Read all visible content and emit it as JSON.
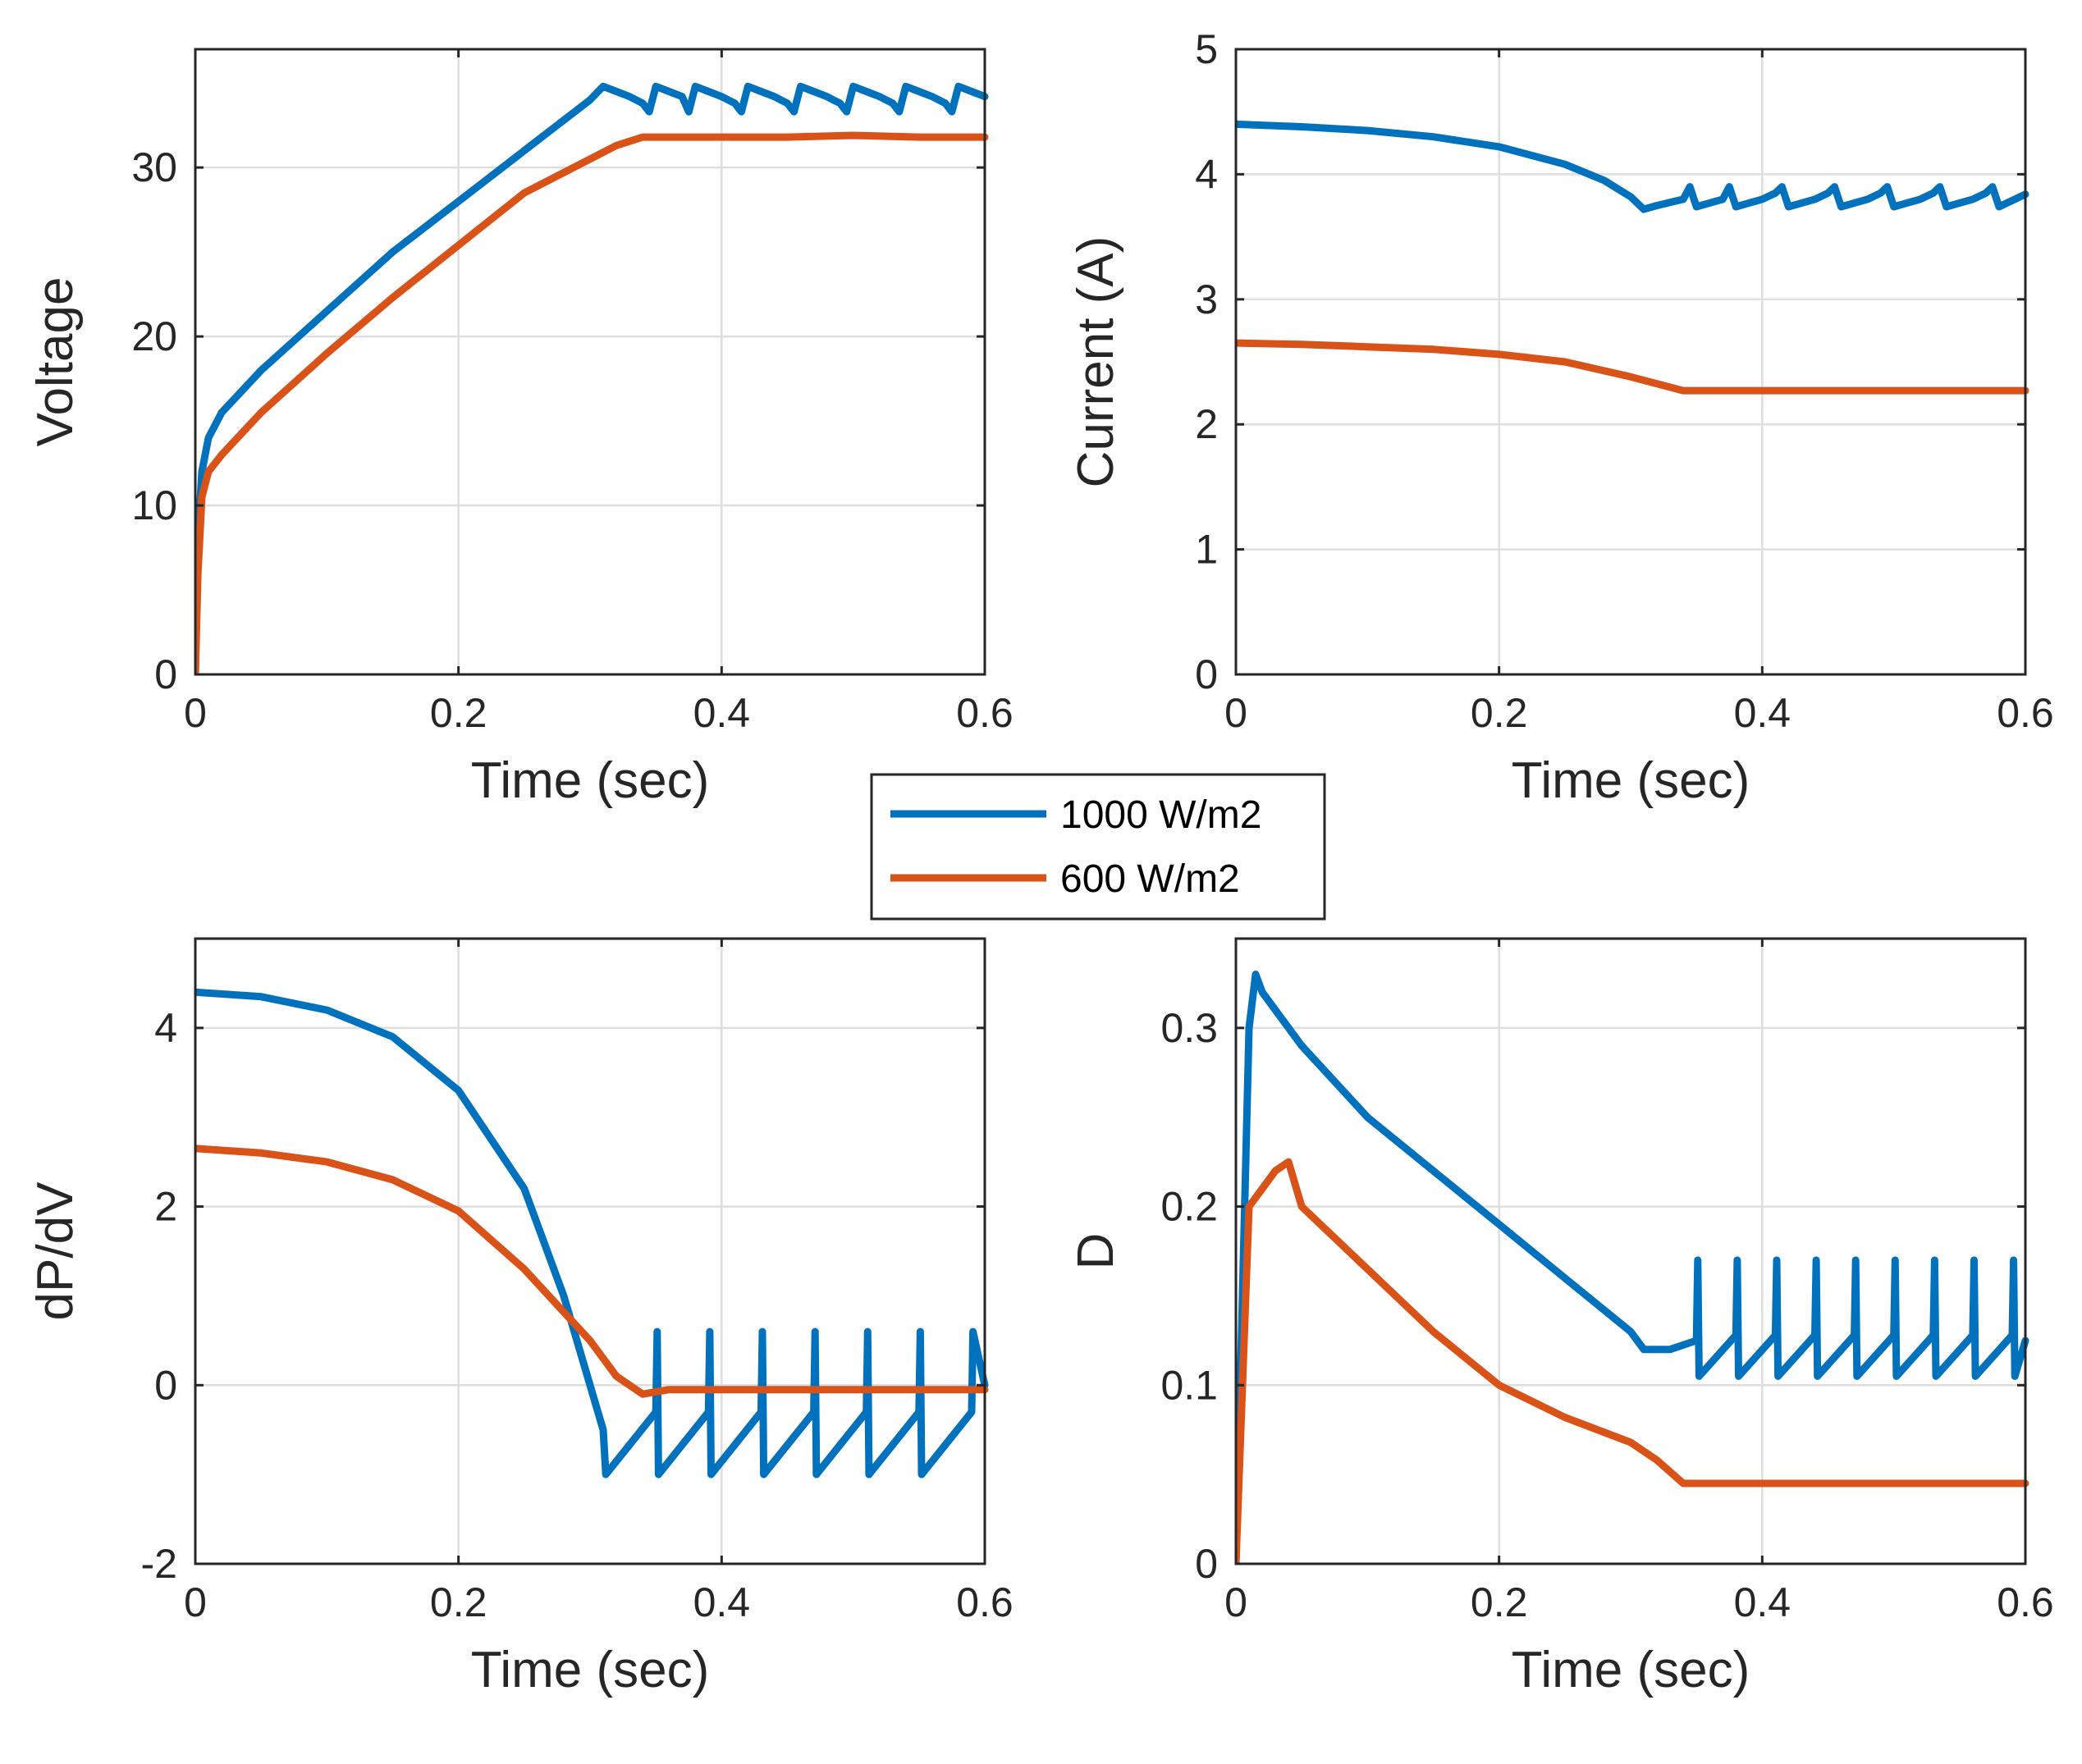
{
  "colors": {
    "s1": "#0072BD",
    "s2": "#D95319",
    "axis": "#262626",
    "grid": "#dedede"
  },
  "legend": {
    "entries": [
      {
        "name": "1000 W/m2",
        "color": "#0072BD"
      },
      {
        "name": "600 W/m2",
        "color": "#D95319"
      }
    ],
    "placement": "center"
  },
  "chart_data": [
    {
      "id": "voltage",
      "type": "line",
      "title": "",
      "xlabel": "Time (sec)",
      "ylabel": "Voltage",
      "xlim": [
        0,
        0.6
      ],
      "ylim": [
        0,
        37
      ],
      "xticks": [
        0,
        0.2,
        0.4,
        0.6
      ],
      "xticklabels": [
        "0",
        "0.2",
        "0.4",
        "0.6"
      ],
      "yticks": [
        0,
        10,
        20,
        30
      ],
      "yticklabels": [
        "0",
        "10",
        "20",
        "30"
      ],
      "grid": true,
      "series": [
        {
          "name": "1000 W/m2",
          "x": [
            0,
            0.002,
            0.005,
            0.01,
            0.02,
            0.05,
            0.1,
            0.15,
            0.2,
            0.25,
            0.3,
            0.31,
            0.32,
            0.33,
            0.34,
            0.345,
            0.35,
            0.36,
            0.37,
            0.375,
            0.38,
            0.39,
            0.4,
            0.41,
            0.415,
            0.42,
            0.43,
            0.44,
            0.45,
            0.455,
            0.46,
            0.47,
            0.48,
            0.49,
            0.495,
            0.5,
            0.51,
            0.52,
            0.53,
            0.535,
            0.54,
            0.55,
            0.56,
            0.57,
            0.575,
            0.58,
            0.59,
            0.6
          ],
          "values": [
            0,
            8,
            12,
            14,
            15.5,
            18,
            21.5,
            25,
            28,
            31,
            34,
            34.8,
            34.5,
            34.2,
            33.8,
            33.3,
            34.8,
            34.5,
            34.2,
            33.3,
            34.8,
            34.5,
            34.2,
            33.8,
            33.3,
            34.8,
            34.5,
            34.2,
            33.8,
            33.3,
            34.8,
            34.5,
            34.2,
            33.8,
            33.3,
            34.8,
            34.5,
            34.2,
            33.8,
            33.3,
            34.8,
            34.5,
            34.2,
            33.8,
            33.3,
            34.8,
            34.5,
            34.2
          ]
        },
        {
          "name": "600 W/m2",
          "x": [
            0,
            0.002,
            0.005,
            0.01,
            0.02,
            0.05,
            0.1,
            0.15,
            0.2,
            0.25,
            0.3,
            0.32,
            0.34,
            0.36,
            0.4,
            0.45,
            0.5,
            0.55,
            0.6
          ],
          "values": [
            0,
            6,
            10.5,
            12,
            13,
            15.5,
            19,
            22.3,
            25.4,
            28.5,
            30.5,
            31.3,
            31.8,
            31.8,
            31.8,
            31.8,
            31.9,
            31.8,
            31.8
          ]
        }
      ]
    },
    {
      "id": "current",
      "type": "line",
      "title": "",
      "xlabel": "Time (sec)",
      "ylabel": "Current (A)",
      "xlim": [
        0,
        0.6
      ],
      "ylim": [
        0,
        5
      ],
      "xticks": [
        0,
        0.2,
        0.4,
        0.6
      ],
      "xticklabels": [
        "0",
        "0.2",
        "0.4",
        "0.6"
      ],
      "yticks": [
        0,
        1,
        2,
        3,
        4,
        5
      ],
      "yticklabels": [
        "0",
        "1",
        "2",
        "3",
        "4",
        "5"
      ],
      "grid": true,
      "series": [
        {
          "name": "1000 W/m2",
          "x": [
            0,
            0.05,
            0.1,
            0.15,
            0.2,
            0.25,
            0.28,
            0.3,
            0.31,
            0.32,
            0.34,
            0.345,
            0.35,
            0.37,
            0.375,
            0.38,
            0.4,
            0.41,
            0.415,
            0.42,
            0.44,
            0.45,
            0.455,
            0.46,
            0.48,
            0.49,
            0.495,
            0.5,
            0.52,
            0.53,
            0.535,
            0.54,
            0.56,
            0.57,
            0.575,
            0.58,
            0.6
          ],
          "values": [
            4.4,
            4.38,
            4.35,
            4.3,
            4.22,
            4.08,
            3.95,
            3.82,
            3.72,
            3.75,
            3.8,
            3.9,
            3.74,
            3.8,
            3.9,
            3.74,
            3.8,
            3.85,
            3.9,
            3.74,
            3.8,
            3.85,
            3.9,
            3.74,
            3.8,
            3.85,
            3.9,
            3.74,
            3.8,
            3.85,
            3.9,
            3.74,
            3.8,
            3.85,
            3.9,
            3.74,
            3.84
          ]
        },
        {
          "name": "600 W/m2",
          "x": [
            0,
            0.05,
            0.1,
            0.15,
            0.2,
            0.25,
            0.3,
            0.34,
            0.36,
            0.4,
            0.45,
            0.5,
            0.55,
            0.6
          ],
          "values": [
            2.65,
            2.64,
            2.62,
            2.6,
            2.56,
            2.5,
            2.38,
            2.27,
            2.27,
            2.27,
            2.27,
            2.27,
            2.27,
            2.27
          ]
        }
      ]
    },
    {
      "id": "dpdv",
      "type": "line",
      "title": "",
      "xlabel": "Time (sec)",
      "ylabel": "dP/dV",
      "xlim": [
        0,
        0.6
      ],
      "ylim": [
        -2,
        5
      ],
      "xticks": [
        0,
        0.2,
        0.4,
        0.6
      ],
      "xticklabels": [
        "0",
        "0.2",
        "0.4",
        "0.6"
      ],
      "yticks": [
        -2,
        0,
        2,
        4
      ],
      "yticklabels": [
        "-2",
        "0",
        "2",
        "4"
      ],
      "grid": true,
      "series": [
        {
          "name": "1000 W/m2",
          "x": [
            0,
            0.05,
            0.1,
            0.15,
            0.2,
            0.25,
            0.28,
            0.3,
            0.31,
            0.312,
            0.35,
            0.351,
            0.352,
            0.39,
            0.391,
            0.392,
            0.43,
            0.431,
            0.432,
            0.47,
            0.471,
            0.472,
            0.51,
            0.511,
            0.512,
            0.55,
            0.551,
            0.552,
            0.59,
            0.591,
            0.6
          ],
          "values": [
            4.4,
            4.35,
            4.2,
            3.9,
            3.3,
            2.2,
            1.0,
            0.0,
            -0.5,
            -1.0,
            -0.3,
            0.6,
            -1.0,
            -0.3,
            0.6,
            -1.0,
            -0.3,
            0.6,
            -1.0,
            -0.3,
            0.6,
            -1.0,
            -0.3,
            0.6,
            -1.0,
            -0.3,
            0.6,
            -1.0,
            -0.3,
            0.6,
            0.0
          ]
        },
        {
          "name": "600 W/m2",
          "x": [
            0,
            0.05,
            0.1,
            0.15,
            0.2,
            0.25,
            0.3,
            0.32,
            0.34,
            0.36,
            0.4,
            0.45,
            0.5,
            0.55,
            0.6
          ],
          "values": [
            2.65,
            2.6,
            2.5,
            2.3,
            1.95,
            1.3,
            0.5,
            0.1,
            -0.1,
            -0.05,
            -0.05,
            -0.05,
            -0.05,
            -0.05,
            -0.05
          ]
        }
      ]
    },
    {
      "id": "duty",
      "type": "line",
      "title": "",
      "xlabel": "Time (sec)",
      "ylabel": "D",
      "xlim": [
        0,
        0.6
      ],
      "ylim": [
        0,
        0.35
      ],
      "xticks": [
        0,
        0.2,
        0.4,
        0.6
      ],
      "xticklabels": [
        "0",
        "0.2",
        "0.4",
        "0.6"
      ],
      "yticks": [
        0,
        0.1,
        0.2,
        0.3
      ],
      "yticklabels": [
        "0",
        "0.1",
        "0.2",
        "0.3"
      ],
      "grid": true,
      "series": [
        {
          "name": "1000 W/m2",
          "x": [
            0,
            0.005,
            0.01,
            0.015,
            0.02,
            0.05,
            0.1,
            0.15,
            0.2,
            0.25,
            0.3,
            0.31,
            0.33,
            0.35,
            0.351,
            0.352,
            0.38,
            0.381,
            0.382,
            0.41,
            0.411,
            0.412,
            0.44,
            0.441,
            0.442,
            0.47,
            0.471,
            0.472,
            0.5,
            0.501,
            0.502,
            0.53,
            0.531,
            0.532,
            0.56,
            0.561,
            0.562,
            0.59,
            0.591,
            0.592,
            0.6
          ],
          "values": [
            0,
            0.15,
            0.3,
            0.33,
            0.32,
            0.29,
            0.25,
            0.22,
            0.19,
            0.16,
            0.13,
            0.12,
            0.12,
            0.125,
            0.17,
            0.105,
            0.128,
            0.17,
            0.105,
            0.128,
            0.17,
            0.105,
            0.128,
            0.17,
            0.105,
            0.128,
            0.17,
            0.105,
            0.128,
            0.17,
            0.105,
            0.128,
            0.17,
            0.105,
            0.128,
            0.17,
            0.105,
            0.128,
            0.17,
            0.105,
            0.125
          ]
        },
        {
          "name": "600 W/m2",
          "x": [
            0,
            0.005,
            0.01,
            0.02,
            0.03,
            0.04,
            0.05,
            0.1,
            0.15,
            0.2,
            0.25,
            0.3,
            0.32,
            0.34,
            0.36,
            0.4,
            0.45,
            0.5,
            0.55,
            0.6
          ],
          "values": [
            0,
            0.1,
            0.2,
            0.21,
            0.22,
            0.225,
            0.2,
            0.165,
            0.13,
            0.1,
            0.082,
            0.068,
            0.058,
            0.045,
            0.045,
            0.045,
            0.045,
            0.045,
            0.045,
            0.045
          ]
        }
      ]
    }
  ]
}
